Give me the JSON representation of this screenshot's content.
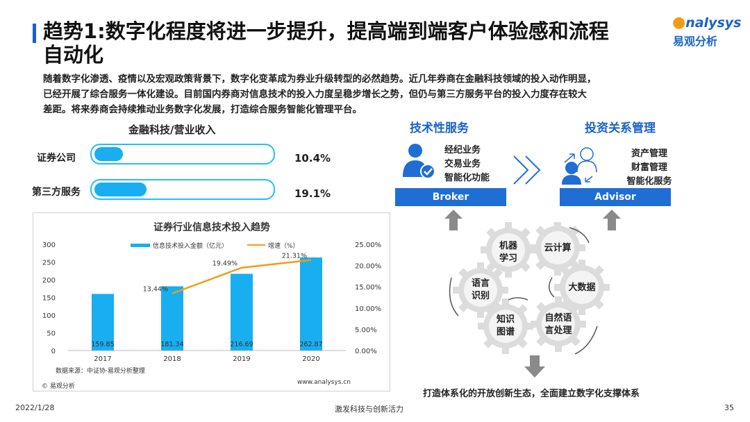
{
  "header": {
    "title_line1": "趋势1:数字化程度将进一步提升，提高端到端客户体验感和流程",
    "title_line2": "自动化",
    "logo_top": "nalysys",
    "logo_bottom": "易观分析"
  },
  "intro": [
    "随着数字化渗透、疫情以及宏观政策背景下，数字化变革成为券业升级转型的必然趋势。近几年券商在金融科技领域的投入动作明显，",
    "已经开展了综合服务一体化建设。目前国内券商对信息技术的投入力度呈稳步增长之势，但仍与第三方服务平台的投入力度存在较大",
    "差距。将来券商会持续推动业务数字化发展，打造综合服务智能化管理平台。"
  ],
  "fintech": {
    "title": "金融科技/营业收入",
    "rows": [
      {
        "label": "证券公司",
        "value": 10.4,
        "display": "10.4%"
      },
      {
        "label": "第三方服务",
        "value": 19.1,
        "display": "19.1%"
      }
    ]
  },
  "chart_data": {
    "type": "bar",
    "title": "证券行业信息技术投入趋势",
    "categories": [
      "2017",
      "2018",
      "2019",
      "2020"
    ],
    "series": [
      {
        "name": "信息技术投入金额（亿元）",
        "type": "bar",
        "values": [
          159.85,
          181.34,
          216.69,
          262.87
        ],
        "labels": [
          "159.85",
          "181.34",
          "216.69",
          "262.87"
        ],
        "color": "#18aef0"
      },
      {
        "name": "增速（%）",
        "type": "line",
        "values": [
          null,
          13.44,
          19.49,
          21.31
        ],
        "labels": [
          "",
          "13.44%",
          "19.49%",
          "21.31%"
        ],
        "color": "#f39c12"
      }
    ],
    "ylim": [
      0,
      300
    ],
    "y_ticks": [
      "0",
      "50",
      "100",
      "150",
      "200",
      "250",
      "300"
    ],
    "y2lim": [
      0,
      25
    ],
    "y2_ticks": [
      "0.00%",
      "5.00%",
      "10.00%",
      "15.00%",
      "20.00%",
      "25.00%"
    ],
    "source": "数据来源：中证协·易观分析整理",
    "url": "www.analysys.cn",
    "copyright": "© 易观分析"
  },
  "diagram": {
    "tech_title": "技术性服务",
    "tech_items": [
      "经纪业务",
      "交易业务",
      "智能化功能"
    ],
    "broker_label": "Broker",
    "invest_title": "投资关系管理",
    "invest_items": [
      "资产管理",
      "财富管理",
      "智能化服务"
    ],
    "advisor_label": "Advisor",
    "gears": [
      {
        "label": "机器\n学习"
      },
      {
        "label": "云计算"
      },
      {
        "label": "语言\n识别"
      },
      {
        "label": "大数据"
      },
      {
        "label": "知识\n图谱"
      },
      {
        "label": "自然语\n言处理"
      }
    ],
    "conclusion": "打造体系化的开放创新生态，全面建立数字化支撑体系"
  },
  "footer": {
    "date": "2022/1/28",
    "center": "激发科技与创新活力",
    "page": "35"
  },
  "colors": {
    "accent": "#1a63c9",
    "bar": "#18aef0",
    "line": "#f39c12",
    "gear": "#dcdcdc"
  }
}
